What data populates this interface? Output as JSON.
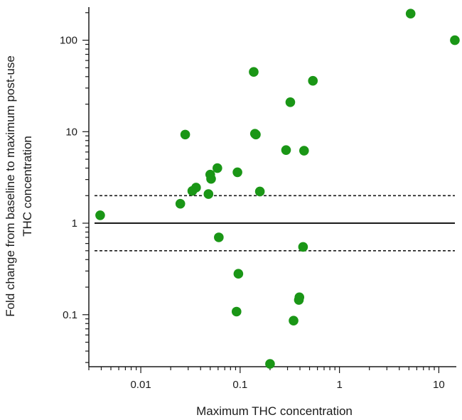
{
  "chart_data": {
    "type": "scatter",
    "title": "",
    "xlabel": "Maximum THC concentration",
    "ylabel_lines": [
      "Fold change from baseline to maximum post-use",
      "THC concentration"
    ],
    "x_scale": "log",
    "y_scale": "log",
    "xlim": [
      0.003,
      15
    ],
    "ylim": [
      0.027,
      230
    ],
    "x_ticks": [
      {
        "value": 0.01,
        "label": "0.01"
      },
      {
        "value": 0.1,
        "label": "0.1"
      },
      {
        "value": 1,
        "label": "1"
      },
      {
        "value": 10,
        "label": "10"
      }
    ],
    "y_ticks": [
      {
        "value": 0.1,
        "label": "0.1"
      },
      {
        "value": 1,
        "label": "1"
      },
      {
        "value": 10,
        "label": "10"
      },
      {
        "value": 100,
        "label": "100"
      }
    ],
    "reference_lines": [
      {
        "y": 1,
        "style": "solid"
      },
      {
        "y": 2,
        "style": "dashed"
      },
      {
        "y": 0.5,
        "style": "dashed"
      }
    ],
    "marker_color": "#1a9616",
    "points": [
      {
        "x": 0.0039,
        "y": 1.22
      },
      {
        "x": 0.025,
        "y": 1.63
      },
      {
        "x": 0.028,
        "y": 9.3
      },
      {
        "x": 0.033,
        "y": 2.25
      },
      {
        "x": 0.036,
        "y": 2.45
      },
      {
        "x": 0.048,
        "y": 2.08
      },
      {
        "x": 0.05,
        "y": 3.4
      },
      {
        "x": 0.051,
        "y": 3.05
      },
      {
        "x": 0.059,
        "y": 4.0
      },
      {
        "x": 0.061,
        "y": 0.7
      },
      {
        "x": 0.092,
        "y": 0.108
      },
      {
        "x": 0.094,
        "y": 3.6
      },
      {
        "x": 0.096,
        "y": 0.28
      },
      {
        "x": 0.137,
        "y": 45
      },
      {
        "x": 0.141,
        "y": 9.5
      },
      {
        "x": 0.144,
        "y": 9.3
      },
      {
        "x": 0.158,
        "y": 2.22
      },
      {
        "x": 0.2,
        "y": 0.029
      },
      {
        "x": 0.29,
        "y": 6.3
      },
      {
        "x": 0.32,
        "y": 21
      },
      {
        "x": 0.345,
        "y": 0.086
      },
      {
        "x": 0.39,
        "y": 0.145
      },
      {
        "x": 0.395,
        "y": 0.155
      },
      {
        "x": 0.43,
        "y": 0.55
      },
      {
        "x": 0.44,
        "y": 6.2
      },
      {
        "x": 0.54,
        "y": 36
      },
      {
        "x": 5.2,
        "y": 195
      },
      {
        "x": 14.5,
        "y": 100
      }
    ]
  }
}
